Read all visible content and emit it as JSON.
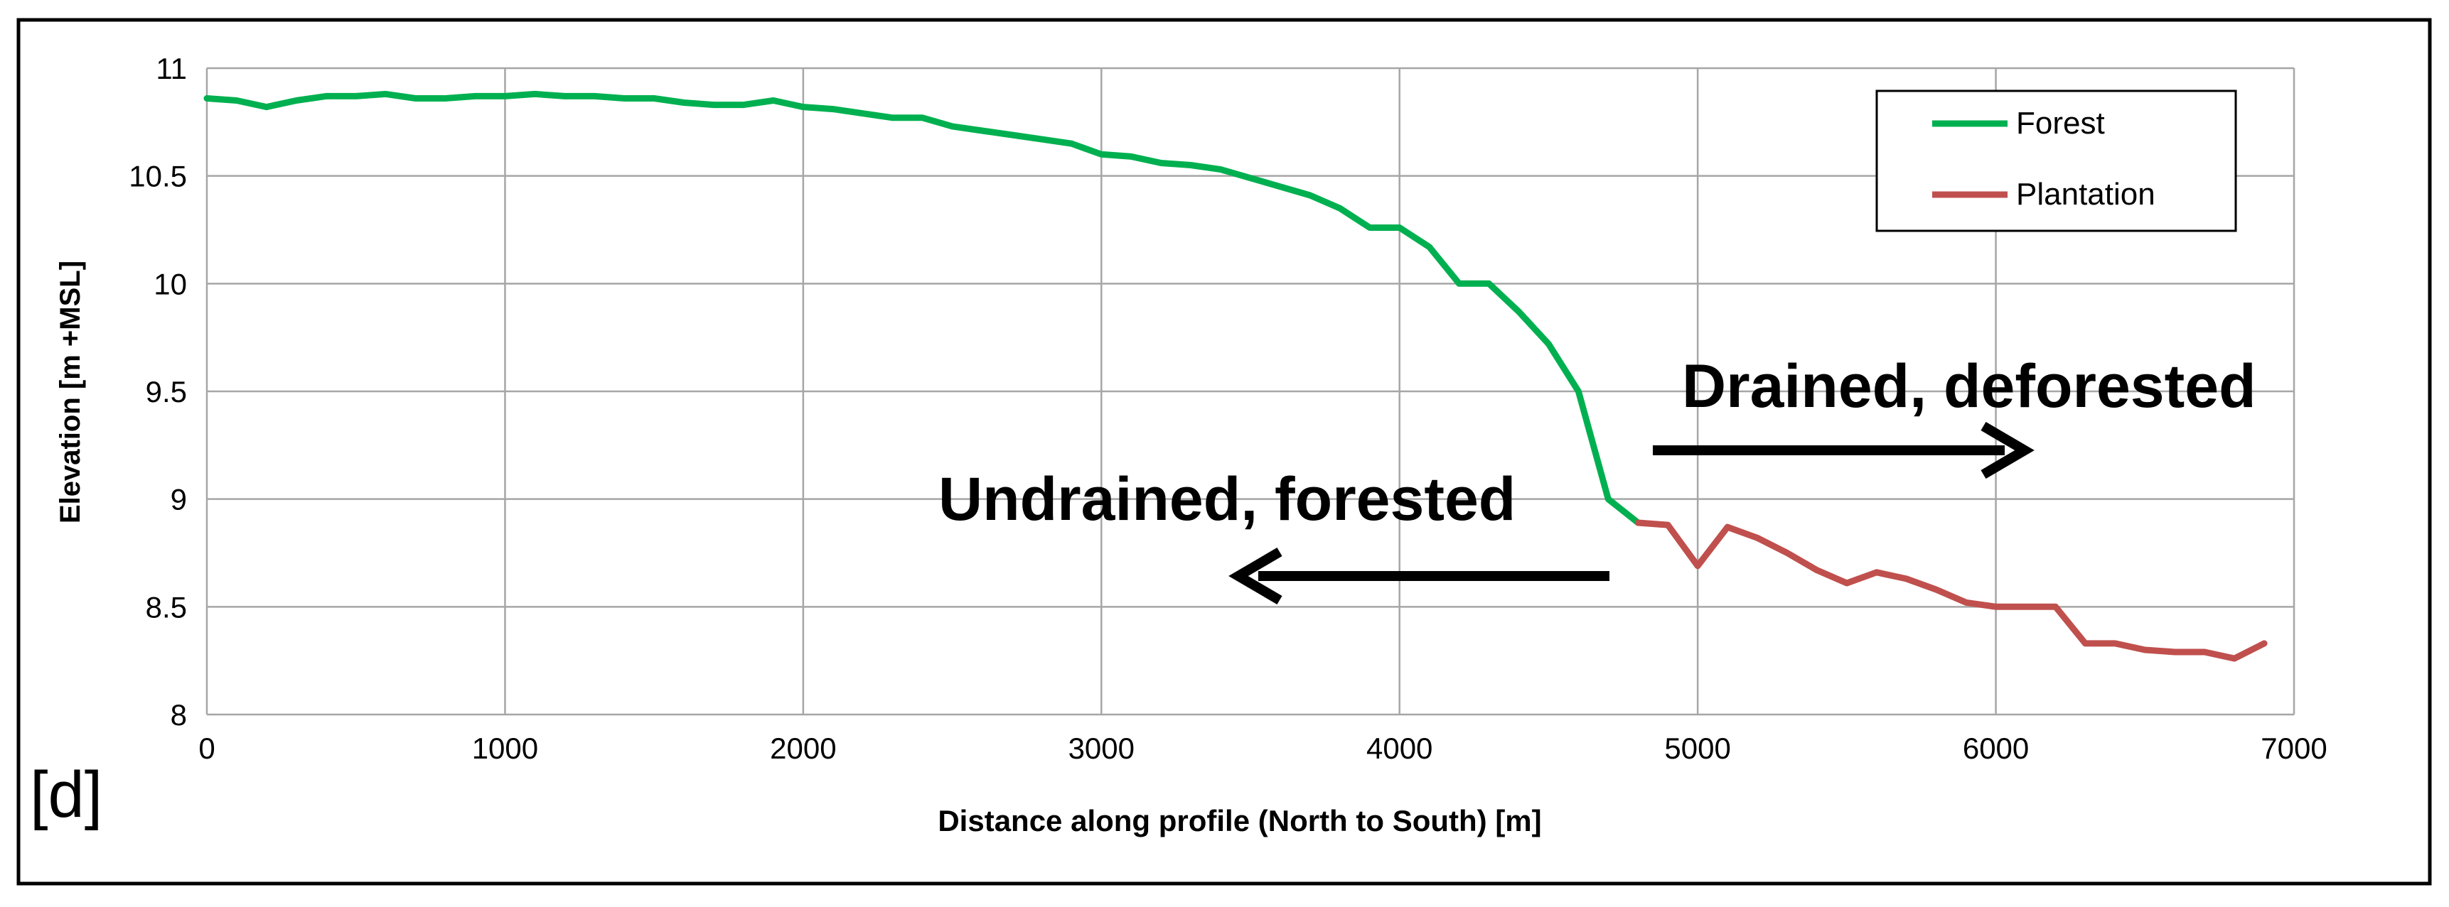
{
  "panel_label": "[d]",
  "annotations": {
    "drained": "Drained, deforested",
    "undrained": "Undrained, forested"
  },
  "colors": {
    "forest": "#00b050",
    "plantation": "#c0504d",
    "grid": "#a6a6a6",
    "axis_text": "#000000"
  },
  "chart_data": {
    "type": "line",
    "xlabel": "Distance along profile (North to South) [m]",
    "ylabel": "Elevation [m +MSL]",
    "xlim": [
      0,
      7000
    ],
    "ylim": [
      8,
      11
    ],
    "xticks": [
      0,
      1000,
      2000,
      3000,
      4000,
      5000,
      6000,
      7000
    ],
    "yticks": [
      8,
      8.5,
      9,
      9.5,
      10,
      10.5,
      11
    ],
    "grid": true,
    "legend_position": "top-right",
    "series": [
      {
        "name": "Forest",
        "color": "#00b050",
        "x": [
          0,
          100,
          200,
          300,
          400,
          500,
          600,
          700,
          800,
          900,
          1000,
          1100,
          1200,
          1300,
          1400,
          1500,
          1600,
          1700,
          1800,
          1900,
          2000,
          2100,
          2200,
          2300,
          2400,
          2500,
          2600,
          2700,
          2800,
          2900,
          3000,
          3100,
          3200,
          3300,
          3400,
          3500,
          3600,
          3700,
          3800,
          3900,
          4000,
          4100,
          4200,
          4300,
          4400,
          4500,
          4600,
          4700,
          4800
        ],
        "y": [
          10.86,
          10.85,
          10.82,
          10.85,
          10.87,
          10.87,
          10.88,
          10.86,
          10.86,
          10.87,
          10.87,
          10.88,
          10.87,
          10.87,
          10.86,
          10.86,
          10.84,
          10.83,
          10.83,
          10.85,
          10.82,
          10.81,
          10.79,
          10.77,
          10.77,
          10.73,
          10.71,
          10.69,
          10.67,
          10.65,
          10.6,
          10.59,
          10.56,
          10.55,
          10.53,
          10.49,
          10.45,
          10.41,
          10.35,
          10.26,
          10.26,
          10.17,
          10.0,
          10.0,
          9.87,
          9.72,
          9.5,
          9.0,
          8.89
        ]
      },
      {
        "name": "Plantation",
        "color": "#c0504d",
        "x": [
          4800,
          4900,
          5000,
          5100,
          5200,
          5300,
          5400,
          5500,
          5600,
          5700,
          5800,
          5900,
          6000,
          6100,
          6200,
          6300,
          6400,
          6500,
          6600,
          6700,
          6800,
          6900
        ],
        "y": [
          8.89,
          8.88,
          8.69,
          8.87,
          8.82,
          8.75,
          8.67,
          8.61,
          8.66,
          8.63,
          8.58,
          8.52,
          8.5,
          8.5,
          8.5,
          8.33,
          8.33,
          8.3,
          8.29,
          8.29,
          8.26,
          8.33
        ]
      }
    ]
  }
}
